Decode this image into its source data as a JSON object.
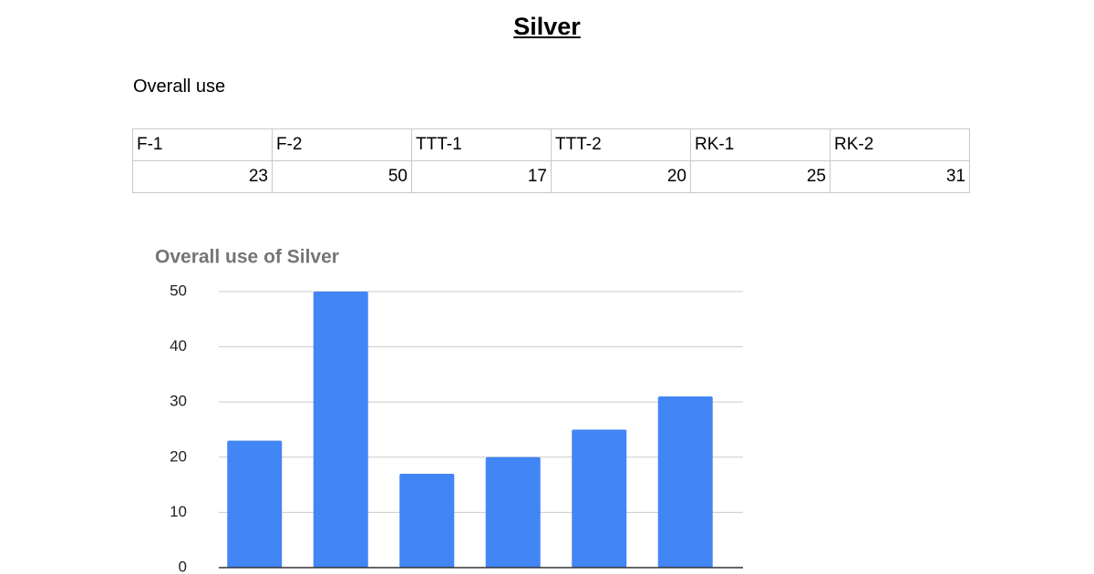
{
  "header": {
    "title": "Silver",
    "subtitle": "Overall use"
  },
  "table": {
    "rows": [
      [
        "F-1",
        "F-2",
        "TTT-1",
        "TTT-2",
        "RK-1",
        "RK-2"
      ],
      [
        23,
        50,
        17,
        20,
        25,
        31
      ]
    ]
  },
  "chart_data": {
    "type": "bar",
    "title": "Overall use of Silver",
    "values": [
      23,
      50,
      17,
      20,
      25,
      31
    ],
    "color": "#4285f4",
    "ylim": [
      0,
      50
    ],
    "yticks": [
      0,
      10,
      20,
      30,
      40,
      50
    ],
    "grid": true
  }
}
